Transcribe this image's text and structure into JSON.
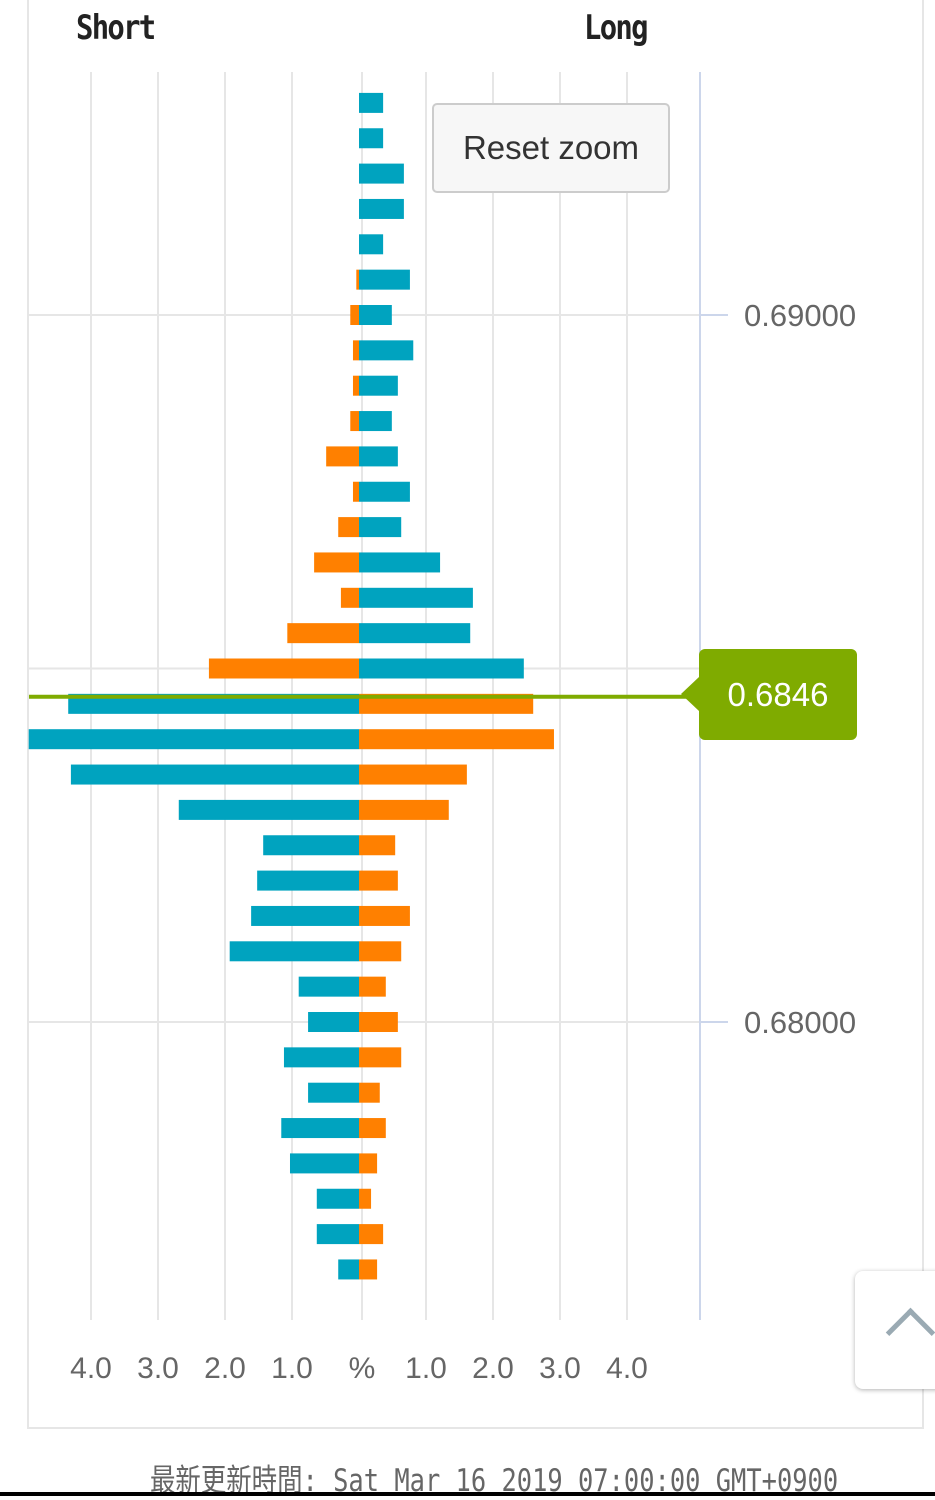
{
  "chart_data": {
    "type": "bar",
    "orientation": "horizontal-butterfly",
    "legend": {
      "left": "Short",
      "right": "Long"
    },
    "x_unit_label": "%",
    "x_ticks": [
      "4.0",
      "3.0",
      "2.0",
      "1.0",
      "%",
      "1.0",
      "2.0",
      "3.0",
      "4.0"
    ],
    "xlim": [
      -5,
      5
    ],
    "y_ticks": [
      "0.69000",
      "0.68000"
    ],
    "ylim": [
      0.6757,
      0.6936
    ],
    "grid": true,
    "current_price": "0.6846",
    "colors": {
      "teal": "#00a3bf",
      "orange": "#ff8000",
      "price": "#7fab00"
    },
    "color_rule": "above current price: long teal, short orange; below: short teal, long orange",
    "categories": [
      0.693,
      0.6925,
      0.692,
      0.6915,
      0.691,
      0.6905,
      0.69,
      0.6895,
      0.689,
      0.6885,
      0.688,
      0.6875,
      0.687,
      0.6865,
      0.686,
      0.6855,
      0.685,
      0.6845,
      0.684,
      0.6835,
      0.683,
      0.6825,
      0.682,
      0.6815,
      0.681,
      0.6805,
      0.68,
      0.6795,
      0.679,
      0.6785,
      0.678,
      0.6775,
      0.677,
      0.6765
    ],
    "series": [
      {
        "name": "Short",
        "values": [
          0,
          0,
          0,
          0,
          0,
          0.04,
          0.13,
          0.09,
          0.09,
          0.13,
          0.49,
          0.09,
          0.31,
          0.67,
          0.27,
          1.07,
          2.24,
          4.34,
          4.93,
          4.3,
          2.69,
          1.43,
          1.52,
          1.61,
          1.93,
          0.9,
          0.76,
          1.12,
          0.76,
          1.16,
          1.03,
          0.63,
          0.63,
          0.31
        ]
      },
      {
        "name": "Long",
        "values": [
          0.36,
          0.36,
          0.67,
          0.67,
          0.36,
          0.76,
          0.49,
          0.81,
          0.58,
          0.49,
          0.58,
          0.76,
          0.63,
          1.21,
          1.7,
          1.66,
          2.46,
          2.6,
          2.91,
          1.61,
          1.34,
          0.54,
          0.58,
          0.76,
          0.63,
          0.4,
          0.58,
          0.63,
          0.31,
          0.4,
          0.27,
          0.18,
          0.36,
          0.27
        ]
      }
    ]
  },
  "controls": {
    "reset_zoom": "Reset zoom"
  },
  "footer": {
    "updated": "最新更新時間: Sat Mar 16 2019 07:00:00 GMT+0900"
  }
}
